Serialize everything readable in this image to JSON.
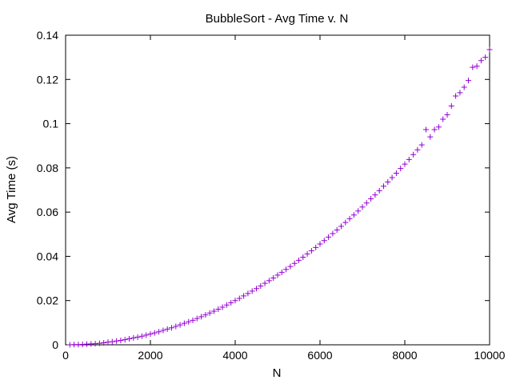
{
  "chart_data": {
    "type": "scatter",
    "title": "BubbleSort - Avg Time v. N",
    "xlabel": "N",
    "ylabel": "Avg Time (s)",
    "xlim": [
      0,
      10000
    ],
    "ylim": [
      0,
      0.14
    ],
    "xticks": [
      0,
      2000,
      4000,
      6000,
      8000,
      10000
    ],
    "xtick_labels": [
      "0",
      "2000",
      "4000",
      "6000",
      "8000",
      "10000"
    ],
    "yticks": [
      0,
      0.02,
      0.04,
      0.06,
      0.08,
      0.1,
      0.12,
      0.14
    ],
    "ytick_labels": [
      "0",
      "0.02",
      "0.04",
      "0.06",
      "0.08",
      "0.1",
      "0.12",
      "0.14"
    ],
    "grid": false,
    "marker": "plus",
    "color": "#9400d3",
    "series": [
      {
        "x": [
          100,
          200,
          300,
          400,
          500,
          600,
          700,
          800,
          900,
          1000,
          1100,
          1200,
          1300,
          1400,
          1500,
          1600,
          1700,
          1800,
          1900,
          2000,
          2100,
          2200,
          2300,
          2400,
          2500,
          2600,
          2700,
          2800,
          2900,
          3000,
          3100,
          3200,
          3300,
          3400,
          3500,
          3600,
          3700,
          3800,
          3900,
          4000,
          4100,
          4200,
          4300,
          4400,
          4500,
          4600,
          4700,
          4800,
          4900,
          5000,
          5100,
          5200,
          5300,
          5400,
          5500,
          5600,
          5700,
          5800,
          5900,
          6000,
          6100,
          6200,
          6300,
          6400,
          6500,
          6600,
          6700,
          6800,
          6900,
          7000,
          7100,
          7200,
          7300,
          7400,
          7500,
          7600,
          7700,
          7800,
          7900,
          8000,
          8100,
          8200,
          8300,
          8400,
          8500,
          8600,
          8700,
          8800,
          8900,
          9000,
          9100,
          9200,
          9300,
          9400,
          9500,
          9600,
          9700,
          9800,
          9900,
          10000
        ],
        "y": [
          0.0,
          0.0001,
          0.0001,
          0.0002,
          0.0003,
          0.0004,
          0.0005,
          0.0007,
          0.0009,
          0.0012,
          0.0014,
          0.0017,
          0.002,
          0.0023,
          0.0027,
          0.0031,
          0.0035,
          0.0039,
          0.0044,
          0.0049,
          0.0054,
          0.0059,
          0.0065,
          0.0071,
          0.0077,
          0.0083,
          0.009,
          0.0097,
          0.0104,
          0.0111,
          0.0119,
          0.0127,
          0.0135,
          0.0144,
          0.0152,
          0.0161,
          0.017,
          0.018,
          0.019,
          0.02,
          0.021,
          0.0221,
          0.0232,
          0.0243,
          0.0254,
          0.0266,
          0.0278,
          0.029,
          0.0302,
          0.0315,
          0.0328,
          0.0341,
          0.0354,
          0.0368,
          0.0382,
          0.0396,
          0.0411,
          0.0425,
          0.044,
          0.0456,
          0.0471,
          0.0487,
          0.0503,
          0.0519,
          0.0536,
          0.0553,
          0.057,
          0.0587,
          0.0605,
          0.0623,
          0.0641,
          0.066,
          0.0678,
          0.0697,
          0.0717,
          0.0736,
          0.0756,
          0.0776,
          0.0797,
          0.0817,
          0.0838,
          0.086,
          0.0882,
          0.0904,
          0.0973,
          0.094,
          0.0973,
          0.0985,
          0.102,
          0.104,
          0.108,
          0.1125,
          0.114,
          0.1165,
          0.1195,
          0.1255,
          0.126,
          0.1285,
          0.13,
          0.1335
        ]
      }
    ]
  }
}
